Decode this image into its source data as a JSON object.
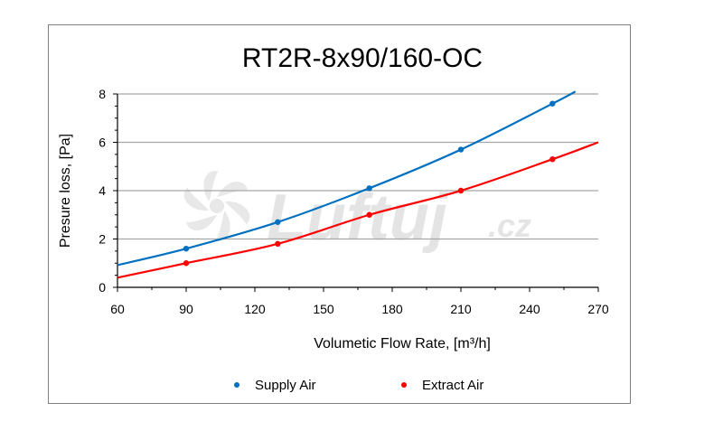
{
  "chart_data": {
    "type": "line",
    "title": "RT2R-8x90/160-OC",
    "xlabel": "Volumetic Flow Rate, [m³/h]",
    "ylabel": "Presure loss, [Pa]",
    "xlim": [
      60,
      270
    ],
    "ylim": [
      0,
      8
    ],
    "xticks": [
      60,
      90,
      120,
      150,
      180,
      210,
      240,
      270
    ],
    "yticks": [
      0,
      2,
      4,
      6,
      8
    ],
    "grid": "horizontal",
    "legend_position": "bottom",
    "series": [
      {
        "name": "Supply Air",
        "color": "#0070c0",
        "points": [
          [
            90,
            1.6
          ],
          [
            130,
            2.7
          ],
          [
            170,
            4.1
          ],
          [
            210,
            5.7
          ],
          [
            250,
            7.6
          ]
        ],
        "curve": [
          [
            60,
            0.92
          ],
          [
            90,
            1.6
          ],
          [
            130,
            2.7
          ],
          [
            170,
            4.1
          ],
          [
            210,
            5.7
          ],
          [
            250,
            7.6
          ],
          [
            260,
            8.1
          ]
        ]
      },
      {
        "name": "Extract Air",
        "color": "#ff0000",
        "points": [
          [
            90,
            1.0
          ],
          [
            130,
            1.8
          ],
          [
            170,
            3.0
          ],
          [
            210,
            4.0
          ],
          [
            250,
            5.3
          ]
        ],
        "curve": [
          [
            60,
            0.4
          ],
          [
            90,
            1.0
          ],
          [
            130,
            1.8
          ],
          [
            170,
            3.0
          ],
          [
            210,
            4.0
          ],
          [
            250,
            5.3
          ],
          [
            270,
            6.0
          ]
        ]
      }
    ]
  },
  "watermark": {
    "brand": "Luftuj",
    "suffix": ".cz",
    "icon": "fan-icon",
    "color": "#c8c8c8"
  }
}
